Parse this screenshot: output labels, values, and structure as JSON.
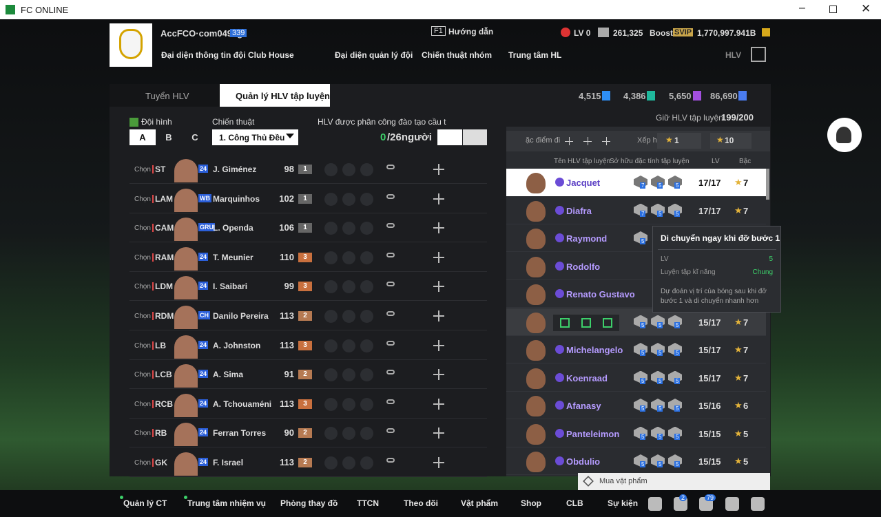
{
  "window": {
    "title": "FC ONLINE"
  },
  "header": {
    "account": "AccFCO·com0490g",
    "level": "339",
    "guide_key": "F1",
    "guide": "Hướng dẫn",
    "lv": "LV 0",
    "coins": "261,325",
    "boost": "Boost",
    "svip": "SVIP",
    "money": "1,770,997.941B",
    "nav": [
      "Đại diện thông tin đội",
      "Club House",
      "Đại diện quản lý đội",
      "Chiến thuật nhóm",
      "Trung tâm HL"
    ],
    "hlv": "HLV"
  },
  "tabs": [
    "Tuyển HLV",
    "Quản lý HLV tập luyện"
  ],
  "currencies": [
    "4,515",
    "4,386",
    "5,650",
    "86,690"
  ],
  "left": {
    "formation_label": "Đội hình",
    "formations": [
      "A",
      "B",
      "C"
    ],
    "tactic_label": "Chiến thuật",
    "tactic": "1. Công Thủ Đều",
    "assign_label": "HLV được phân công đào tạo cầu t",
    "assigned": "0",
    "total": "/26người",
    "pick_label": "Chọn",
    "rows": [
      {
        "pos": "ST",
        "season": "24",
        "name": "J. Giménez",
        "ovr": "98",
        "level": "1"
      },
      {
        "pos": "LAM",
        "season": "WB",
        "name": "Marquinhos",
        "ovr": "102",
        "level": "1"
      },
      {
        "pos": "CAM",
        "season": "GRU",
        "name": "L. Openda",
        "ovr": "106",
        "level": "1"
      },
      {
        "pos": "RAM",
        "season": "24",
        "name": "T. Meunier",
        "ovr": "110",
        "level": "3"
      },
      {
        "pos": "LDM",
        "season": "24",
        "name": "I. Saibari",
        "ovr": "99",
        "level": "3"
      },
      {
        "pos": "RDM",
        "season": "CH",
        "name": "Danilo Pereira",
        "ovr": "113",
        "level": "2"
      },
      {
        "pos": "LB",
        "season": "24",
        "name": "A. Johnston",
        "ovr": "113",
        "level": "3"
      },
      {
        "pos": "LCB",
        "season": "24",
        "name": "A. Sima",
        "ovr": "91",
        "level": "2"
      },
      {
        "pos": "RCB",
        "season": "24",
        "name": "A. Tchouaméni",
        "ovr": "113",
        "level": "3"
      },
      {
        "pos": "RB",
        "season": "24",
        "name": "Ferran Torres",
        "ovr": "90",
        "level": "2"
      },
      {
        "pos": "GK",
        "season": "24",
        "name": "F. Israel",
        "ovr": "113",
        "level": "2"
      }
    ]
  },
  "right": {
    "capacity_label": "Giữ HLV tập luyện",
    "capacity": "199/200",
    "trait_label": "ặc điểm đi",
    "sort_label": "Xếp hạ",
    "star_min": "1",
    "star_max": "10",
    "columns": [
      "Tên HLV tập luyện",
      "Sở hữu đặc tính tập luyện",
      "LV",
      "Bậc"
    ],
    "coaches": [
      {
        "name": "Jacquet",
        "traits": [
          "7",
          "5",
          "5"
        ],
        "lv": "17/17",
        "stars": "7"
      },
      {
        "name": "Diafra",
        "traits": [
          "7",
          "5",
          "5"
        ],
        "lv": "17/17",
        "stars": "7"
      },
      {
        "name": "Raymond",
        "traits": [
          "5"
        ],
        "lv": null,
        "stars": null
      },
      {
        "name": "Rodolfo",
        "traits": [],
        "lv": null,
        "stars": null
      },
      {
        "name": "Renato Gustavo",
        "traits": [],
        "lv": null,
        "stars": null
      },
      {
        "name": null,
        "traits": [
          "5",
          "5",
          "5"
        ],
        "lv": "15/17",
        "stars": "7"
      },
      {
        "name": "Michelangelo",
        "traits": [
          "5",
          "5",
          "5"
        ],
        "lv": "15/17",
        "stars": "7"
      },
      {
        "name": "Koenraad",
        "traits": [
          "5",
          "5",
          "5"
        ],
        "lv": "15/17",
        "stars": "7"
      },
      {
        "name": "Afanasy",
        "traits": [
          "5",
          "5",
          "5"
        ],
        "lv": "15/16",
        "stars": "6"
      },
      {
        "name": "Panteleimon",
        "traits": [
          "5",
          "5",
          "5"
        ],
        "lv": "15/15",
        "stars": "5"
      },
      {
        "name": "Obdulio",
        "traits": [
          "5",
          "5",
          "5"
        ],
        "lv": "15/15",
        "stars": "5"
      }
    ]
  },
  "tooltip": {
    "title": "Di chuyển ngay khi đỡ bước 1",
    "rows": [
      [
        "LV",
        "5"
      ],
      [
        "Luyện tập kĩ năng",
        "Chung"
      ]
    ],
    "description": "Dự đoán vị trí của bóng sau khi đỡ bước 1 và di chuyển nhanh hơn"
  },
  "buy": "Mua vật phẩm",
  "bottom": {
    "items": [
      "Quản lý CT",
      "Trung tâm nhiệm vụ",
      "Phòng thay đồ",
      "TTCN",
      "Theo dõi",
      "Vật phẩm",
      "Shop",
      "CLB",
      "Sự kiện"
    ],
    "badges": [
      "2",
      "79"
    ]
  }
}
